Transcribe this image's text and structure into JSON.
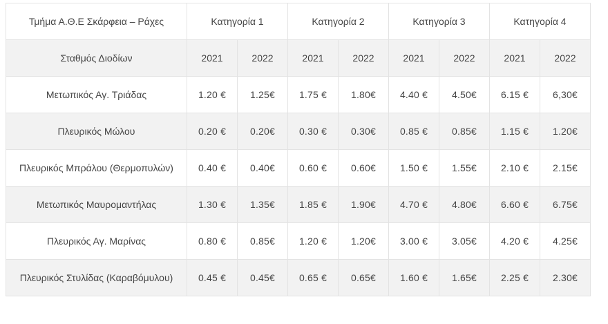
{
  "chart_data": {
    "type": "table",
    "title": "Τμήμα Α.Θ.Ε Σκάρφεια – Ράχες",
    "row_label_header": "Σταθμός Διοδίων",
    "column_groups": [
      "Κατηγορία  1",
      "Κατηγορία 2",
      "Κατηγορία 3",
      "Κατηγορία 4"
    ],
    "sub_columns_per_group": [
      "2021",
      "2022"
    ],
    "year_headers": [
      "2021",
      "2022",
      "2021",
      "2022",
      "2021",
      "2022",
      "2021",
      "2022"
    ],
    "rows": [
      {
        "station": "Μετωπικός Αγ. Τριάδας",
        "values": [
          "1.20 €",
          "1.25€",
          "1.75 €",
          "1.80€",
          "4.40 €",
          "4.50€",
          "6.15 €",
          "6,30€"
        ]
      },
      {
        "station": "Πλευρικός Μώλου",
        "values": [
          "0.20 €",
          "0.20€",
          "0.30 €",
          "0.30€",
          "0.85 €",
          "0.85€",
          "1.15 €",
          "1.20€"
        ]
      },
      {
        "station": "Πλευρικός Μπράλου (Θερμοπυλών)",
        "values": [
          "0.40 €",
          "0.40€",
          "0.60 €",
          "0.60€",
          "1.50 €",
          "1.55€",
          "2.10 €",
          "2.15€"
        ]
      },
      {
        "station": "Μετωπικός Μαυρομαντήλας",
        "values": [
          "1.30 €",
          "1.35€",
          "1.85 €",
          "1.90€",
          "4.70 €",
          "4.80€",
          "6.60 €",
          "6.75€"
        ]
      },
      {
        "station": "Πλευρικός Αγ. Μαρίνας",
        "values": [
          "0.80 €",
          "0.85€",
          "1.20 €",
          "1.20€",
          "3.00 €",
          "3.05€",
          "4.20 €",
          "4.25€"
        ]
      },
      {
        "station": "Πλευρικός Στυλίδας (Καραβόμυλου)",
        "values": [
          "0.45 €",
          "0.45€",
          "0.65 €",
          "0.65€",
          "1.60 €",
          "1.65€",
          "2.25 €",
          "2.30€"
        ]
      }
    ],
    "layout": {
      "alternating_row_background": "#f2f2f2",
      "border_color": "#e3e3e3",
      "text_color": "#454545",
      "currency": "EUR"
    }
  }
}
